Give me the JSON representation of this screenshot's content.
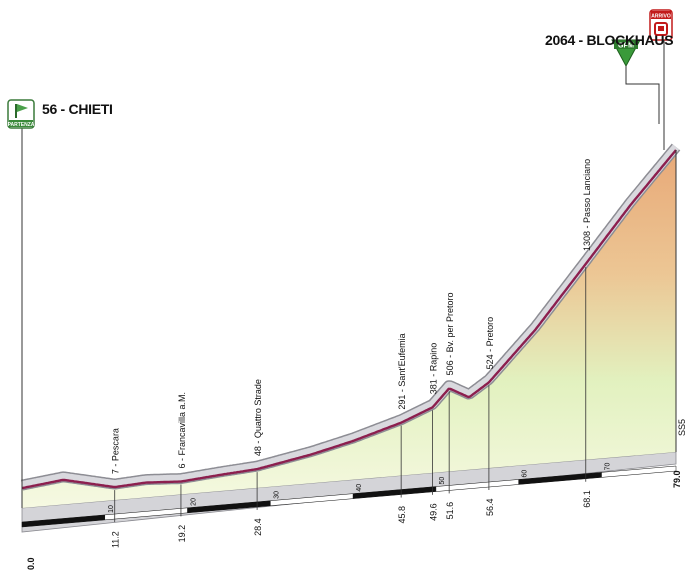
{
  "start": {
    "label": "56 - CHIETI",
    "badge": "PARTENZA",
    "altitude_m": 56
  },
  "finish": {
    "label": "2064 - BLOCKHAUS",
    "badge": "ARRIVO",
    "gpm_badge": "GPM",
    "altitude_m": 2064
  },
  "road_label": "SS5",
  "colors": {
    "road_line": "#8c1f4e",
    "road_edge": "#c8c8cc",
    "sky_top": "#ffffff",
    "ground_low": "#f3f7dc",
    "ground_high": "#e8b080",
    "ground_mid": "#dff0bb"
  },
  "chart_data": {
    "type": "area",
    "x_unit": "km",
    "y_unit": "m",
    "xlim": [
      0,
      79
    ],
    "ylim": [
      0,
      2064
    ],
    "profile": [
      {
        "km": 0.0,
        "alt": 56
      },
      {
        "km": 5.0,
        "alt": 90
      },
      {
        "km": 11.2,
        "alt": 7
      },
      {
        "km": 15.0,
        "alt": 20
      },
      {
        "km": 19.2,
        "alt": 6
      },
      {
        "km": 24.0,
        "alt": 30
      },
      {
        "km": 28.4,
        "alt": 48
      },
      {
        "km": 35.0,
        "alt": 120
      },
      {
        "km": 40.0,
        "alt": 190
      },
      {
        "km": 45.8,
        "alt": 291
      },
      {
        "km": 49.6,
        "alt": 381
      },
      {
        "km": 51.6,
        "alt": 506
      },
      {
        "km": 54.0,
        "alt": 430
      },
      {
        "km": 56.4,
        "alt": 524
      },
      {
        "km": 62.0,
        "alt": 870
      },
      {
        "km": 68.1,
        "alt": 1308
      },
      {
        "km": 73.5,
        "alt": 1700
      },
      {
        "km": 79.0,
        "alt": 2064
      }
    ],
    "waypoints": [
      {
        "km": 11.2,
        "km_label": "11.2",
        "label": "7 - Pescara"
      },
      {
        "km": 19.2,
        "km_label": "19.2",
        "label": "6 - Francavilla a.M."
      },
      {
        "km": 28.4,
        "km_label": "28.4",
        "label": "48 - Quattro Strade"
      },
      {
        "km": 45.8,
        "km_label": "45.8",
        "label": "291 - Sant'Eufemia"
      },
      {
        "km": 49.6,
        "km_label": "49.6",
        "label": "381 - Rapino"
      },
      {
        "km": 51.6,
        "km_label": "51.6",
        "label": "506 - Bv. per Pretoro"
      },
      {
        "km": 56.4,
        "km_label": "56.4",
        "label": "524 - Pretoro"
      },
      {
        "km": 68.1,
        "km_label": "68.1",
        "label": "1308 - Passo Lanciano"
      }
    ],
    "start_km_label": "0.0",
    "end_km_label": "79.0",
    "km_ticks": [
      {
        "km": 10,
        "label": "10"
      },
      {
        "km": 20,
        "label": "20"
      },
      {
        "km": 30,
        "label": "30"
      },
      {
        "km": 40,
        "label": "40"
      },
      {
        "km": 50,
        "label": "50"
      },
      {
        "km": 60,
        "label": "60"
      },
      {
        "km": 70,
        "label": "70"
      }
    ]
  }
}
